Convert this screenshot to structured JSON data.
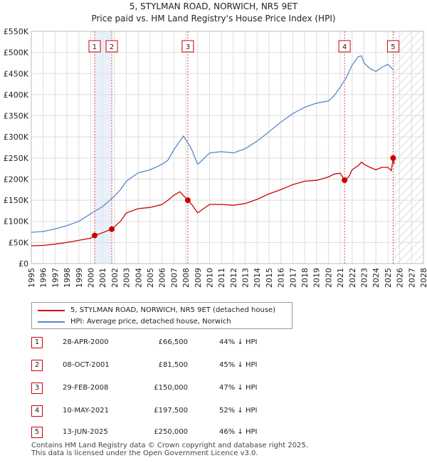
{
  "chart_data": {
    "type": "line",
    "title": "5, STYLMAN ROAD, NORWICH, NR5 9ET",
    "subtitle": "Price paid vs. HM Land Registry's House Price Index (HPI)",
    "xlim": [
      1995,
      2028
    ],
    "ylim": [
      0,
      550000
    ],
    "y_ticks": [
      0,
      50000,
      100000,
      150000,
      200000,
      250000,
      300000,
      350000,
      400000,
      450000,
      500000,
      550000
    ],
    "y_tick_labels": [
      "£0",
      "£50K",
      "£100K",
      "£150K",
      "£200K",
      "£250K",
      "£300K",
      "£350K",
      "£400K",
      "£450K",
      "£500K",
      "£550K"
    ],
    "x_ticks": [
      1995,
      1996,
      1997,
      1998,
      1999,
      2000,
      2001,
      2002,
      2003,
      2004,
      2005,
      2006,
      2007,
      2008,
      2009,
      2010,
      2011,
      2012,
      2013,
      2014,
      2015,
      2016,
      2017,
      2018,
      2019,
      2020,
      2021,
      2022,
      2023,
      2024,
      2025,
      2026,
      2027,
      2028
    ],
    "x_tick_labels": [
      "1995",
      "1996",
      "1997",
      "1998",
      "1999",
      "2000",
      "2001",
      "2002",
      "2003",
      "2004",
      "2005",
      "2006",
      "2007",
      "2008",
      "2009",
      "2010",
      "2011",
      "2012",
      "2013",
      "2014",
      "2015",
      "2016",
      "2017",
      "2018",
      "2019",
      "2020",
      "2021",
      "2022",
      "2023",
      "2024",
      "2025",
      "2026",
      "2027",
      "2028"
    ],
    "hatch_from": 2025.45,
    "series": [
      {
        "name": "5, STYLMAN ROAD, NORWICH, NR5 9ET (detached house)",
        "color": "#cc0000",
        "points": [
          [
            1995.0,
            42000
          ],
          [
            1996.0,
            43000
          ],
          [
            1997.0,
            46000
          ],
          [
            1998.0,
            50000
          ],
          [
            1999.0,
            55000
          ],
          [
            2000.0,
            60000
          ],
          [
            2000.33,
            66500
          ],
          [
            2001.0,
            73000
          ],
          [
            2001.77,
            81500
          ],
          [
            2002.5,
            100000
          ],
          [
            2003.0,
            120000
          ],
          [
            2004.0,
            130000
          ],
          [
            2005.0,
            133000
          ],
          [
            2006.0,
            140000
          ],
          [
            2006.5,
            150000
          ],
          [
            2007.0,
            162000
          ],
          [
            2007.5,
            170000
          ],
          [
            2008.17,
            150000
          ],
          [
            2008.5,
            140000
          ],
          [
            2009.0,
            120000
          ],
          [
            2009.5,
            130000
          ],
          [
            2010.0,
            140000
          ],
          [
            2011.0,
            140000
          ],
          [
            2012.0,
            138000
          ],
          [
            2013.0,
            142000
          ],
          [
            2014.0,
            152000
          ],
          [
            2015.0,
            165000
          ],
          [
            2016.0,
            175000
          ],
          [
            2017.0,
            187000
          ],
          [
            2018.0,
            195000
          ],
          [
            2019.0,
            197000
          ],
          [
            2020.0,
            205000
          ],
          [
            2020.5,
            212000
          ],
          [
            2021.0,
            214000
          ],
          [
            2021.36,
            197500
          ],
          [
            2021.7,
            205000
          ],
          [
            2022.0,
            222000
          ],
          [
            2022.5,
            232000
          ],
          [
            2022.8,
            240000
          ],
          [
            2023.0,
            235000
          ],
          [
            2023.5,
            228000
          ],
          [
            2024.0,
            222000
          ],
          [
            2024.5,
            228000
          ],
          [
            2025.0,
            228000
          ],
          [
            2025.3,
            220000
          ],
          [
            2025.45,
            250000
          ],
          [
            2025.55,
            235000
          ]
        ]
      },
      {
        "name": "HPI: Average price, detached house, Norwich",
        "color": "#5b87c7",
        "points": [
          [
            1995.0,
            74000
          ],
          [
            1996.0,
            76000
          ],
          [
            1997.0,
            82000
          ],
          [
            1998.0,
            90000
          ],
          [
            1999.0,
            100000
          ],
          [
            2000.0,
            118000
          ],
          [
            2001.0,
            135000
          ],
          [
            2002.0,
            160000
          ],
          [
            2002.5,
            175000
          ],
          [
            2003.0,
            195000
          ],
          [
            2004.0,
            215000
          ],
          [
            2005.0,
            222000
          ],
          [
            2006.0,
            235000
          ],
          [
            2006.5,
            245000
          ],
          [
            2007.0,
            270000
          ],
          [
            2007.5,
            290000
          ],
          [
            2007.8,
            302000
          ],
          [
            2008.2,
            285000
          ],
          [
            2008.5,
            270000
          ],
          [
            2009.0,
            235000
          ],
          [
            2009.5,
            248000
          ],
          [
            2010.0,
            262000
          ],
          [
            2011.0,
            265000
          ],
          [
            2012.0,
            262000
          ],
          [
            2013.0,
            272000
          ],
          [
            2014.0,
            290000
          ],
          [
            2015.0,
            312000
          ],
          [
            2016.0,
            335000
          ],
          [
            2017.0,
            355000
          ],
          [
            2018.0,
            370000
          ],
          [
            2019.0,
            380000
          ],
          [
            2020.0,
            385000
          ],
          [
            2020.5,
            398000
          ],
          [
            2021.0,
            418000
          ],
          [
            2021.5,
            440000
          ],
          [
            2022.0,
            470000
          ],
          [
            2022.5,
            490000
          ],
          [
            2022.8,
            492000
          ],
          [
            2023.0,
            475000
          ],
          [
            2023.5,
            462000
          ],
          [
            2024.0,
            455000
          ],
          [
            2024.5,
            465000
          ],
          [
            2025.0,
            472000
          ],
          [
            2025.5,
            458000
          ]
        ]
      }
    ],
    "sale_markers": [
      {
        "label": "1",
        "x": 2000.33,
        "y": 66500
      },
      {
        "label": "2",
        "x": 2001.77,
        "y": 81500
      },
      {
        "label": "3",
        "x": 2008.17,
        "y": 150000
      },
      {
        "label": "4",
        "x": 2021.36,
        "y": 197500
      },
      {
        "label": "5",
        "x": 2025.45,
        "y": 250000
      }
    ],
    "shaded_span": [
      2000.33,
      2001.77
    ]
  },
  "legend": {
    "property_label": "5, STYLMAN ROAD, NORWICH, NR5 9ET (detached house)",
    "hpi_label": "HPI: Average price, detached house, Norwich",
    "property_color": "#cc0000",
    "hpi_color": "#5b87c7"
  },
  "sales": [
    {
      "num": "1",
      "date": "28-APR-2000",
      "price": "£66,500",
      "hpi": "44% ↓ HPI"
    },
    {
      "num": "2",
      "date": "08-OCT-2001",
      "price": "£81,500",
      "hpi": "45% ↓ HPI"
    },
    {
      "num": "3",
      "date": "29-FEB-2008",
      "price": "£150,000",
      "hpi": "47% ↓ HPI"
    },
    {
      "num": "4",
      "date": "10-MAY-2021",
      "price": "£197,500",
      "hpi": "52% ↓ HPI"
    },
    {
      "num": "5",
      "date": "13-JUN-2025",
      "price": "£250,000",
      "hpi": "46% ↓ HPI"
    }
  ],
  "footer": {
    "line1": "Contains HM Land Registry data © Crown copyright and database right 2025.",
    "line2": "This data is licensed under the Open Government Licence v3.0."
  }
}
